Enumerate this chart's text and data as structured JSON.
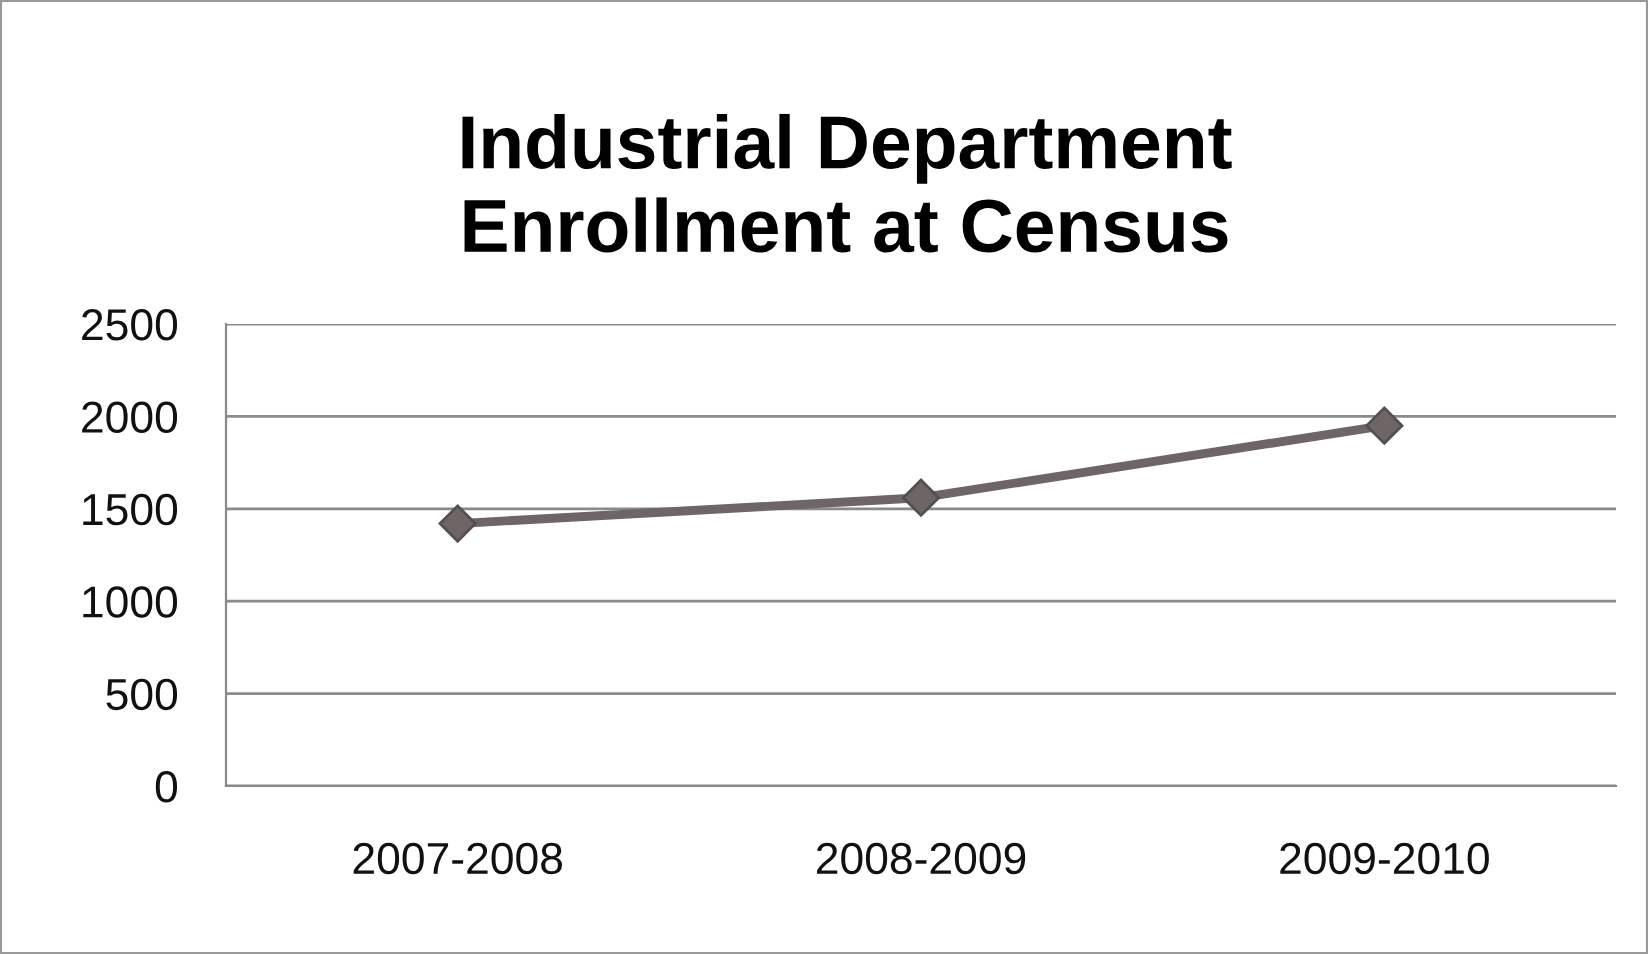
{
  "chart_data": {
    "type": "line",
    "title": "Industrial Department\nEnrollment at Census",
    "categories": [
      "2007-2008",
      "2008-2009",
      "2009-2010"
    ],
    "series": [
      {
        "color": "#6e6666",
        "values": [
          1420,
          1560,
          1950
        ]
      }
    ],
    "ylim": [
      0,
      2500
    ],
    "yticks": [
      0,
      500,
      1000,
      1500,
      2000,
      2500
    ],
    "grid": "y",
    "marker": "diamond",
    "line_style": "solid"
  }
}
